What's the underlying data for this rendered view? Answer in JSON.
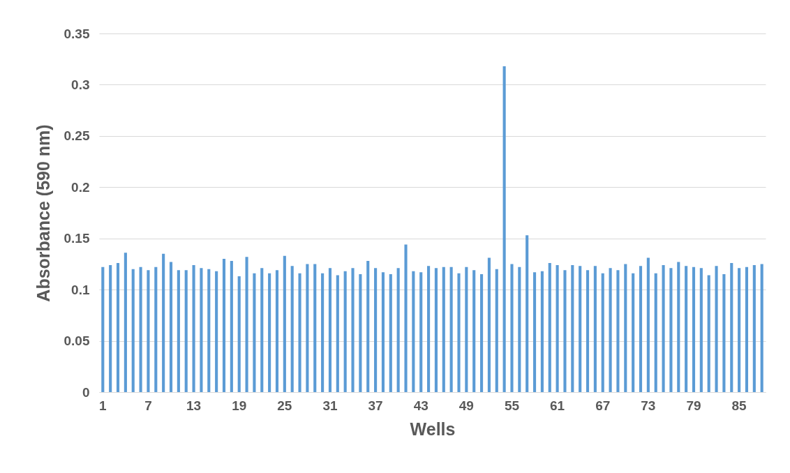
{
  "chart_data": {
    "type": "bar",
    "xlabel": "Wells",
    "ylabel": "Absorbance (590 nm)",
    "categories": [
      "1",
      null,
      null,
      null,
      null,
      null,
      "7",
      null,
      null,
      null,
      null,
      null,
      "13",
      null,
      null,
      null,
      null,
      null,
      "19",
      null,
      null,
      null,
      null,
      null,
      "25",
      null,
      null,
      null,
      null,
      null,
      "31",
      null,
      null,
      null,
      null,
      null,
      "37",
      null,
      null,
      null,
      null,
      null,
      "43",
      null,
      null,
      null,
      null,
      null,
      "49",
      null,
      null,
      null,
      null,
      null,
      "55",
      null,
      null,
      null,
      null,
      null,
      "61",
      null,
      null,
      null,
      null,
      null,
      "67",
      null,
      null,
      null,
      null,
      null,
      "73",
      null,
      null,
      null,
      null,
      null,
      "79",
      null,
      null,
      null,
      null,
      null,
      "85",
      null,
      null,
      null
    ],
    "values": [
      0.122,
      0.124,
      0.126,
      0.136,
      0.12,
      0.122,
      0.119,
      0.122,
      0.135,
      0.127,
      0.119,
      0.119,
      0.124,
      0.121,
      0.12,
      0.118,
      0.13,
      0.128,
      0.113,
      0.132,
      0.116,
      0.121,
      0.116,
      0.119,
      0.133,
      0.123,
      0.116,
      0.125,
      0.125,
      0.116,
      0.121,
      0.114,
      0.118,
      0.121,
      0.115,
      0.128,
      0.121,
      0.117,
      0.115,
      0.121,
      0.144,
      0.118,
      0.117,
      0.123,
      0.121,
      0.122,
      0.122,
      0.116,
      0.122,
      0.119,
      0.115,
      0.131,
      0.12,
      0.318,
      0.125,
      0.122,
      0.153,
      0.117,
      0.118,
      0.126,
      0.124,
      0.119,
      0.124,
      0.123,
      0.119,
      0.123,
      0.116,
      0.121,
      0.119,
      0.125,
      0.116,
      0.123,
      0.131,
      0.116,
      0.124,
      0.121,
      0.127,
      0.123,
      0.122,
      0.121,
      0.114,
      0.123,
      0.115,
      0.126,
      0.121,
      0.122,
      0.124,
      0.125
    ],
    "color": "#5b9bd5",
    "ylim": [
      0,
      0.35
    ],
    "yticks": [
      0,
      0.05,
      0.1,
      0.15,
      0.2,
      0.25,
      0.3,
      0.35
    ],
    "grid": "y"
  }
}
